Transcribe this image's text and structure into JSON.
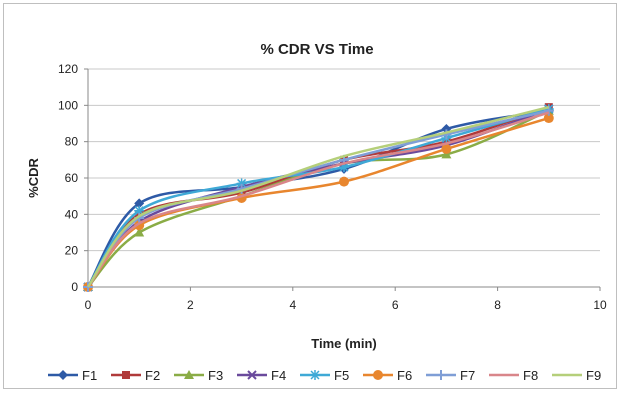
{
  "chart_data": {
    "type": "line",
    "title": "% CDR VS Time",
    "xlabel": "Time (min)",
    "ylabel": "%CDR",
    "xlim": [
      0,
      10
    ],
    "ylim": [
      0,
      120
    ],
    "x_ticks": [
      0,
      2,
      4,
      6,
      8,
      10
    ],
    "y_ticks": [
      0,
      20,
      40,
      60,
      80,
      100,
      120
    ],
    "grid": "horizontal",
    "legend_position": "bottom",
    "x": [
      0,
      1,
      3,
      5,
      7,
      9
    ],
    "series": [
      {
        "name": "F1",
        "values": [
          0,
          46,
          55,
          65,
          87,
          97
        ],
        "color": "#2e5aa6",
        "marker": "diamond"
      },
      {
        "name": "F2",
        "values": [
          0,
          40,
          52,
          70,
          80,
          99
        ],
        "color": "#b03a3a",
        "marker": "square"
      },
      {
        "name": "F3",
        "values": [
          0,
          30,
          50,
          68,
          73,
          97
        ],
        "color": "#8aac46",
        "marker": "triangle"
      },
      {
        "name": "F4",
        "values": [
          0,
          36,
          55,
          68,
          78,
          98
        ],
        "color": "#6a4a9c",
        "marker": "x"
      },
      {
        "name": "F5",
        "values": [
          0,
          42,
          57,
          66,
          82,
          98
        ],
        "color": "#3fa9d6",
        "marker": "star"
      },
      {
        "name": "F6",
        "values": [
          0,
          34,
          49,
          58,
          76,
          93
        ],
        "color": "#e8862e",
        "marker": "circle"
      },
      {
        "name": "F7",
        "values": [
          0,
          38,
          54,
          70,
          84,
          97
        ],
        "color": "#7f9ed6",
        "marker": "plus"
      },
      {
        "name": "F8",
        "values": [
          0,
          35,
          50,
          68,
          79,
          96
        ],
        "color": "#d9868a",
        "marker": "none"
      },
      {
        "name": "F9",
        "values": [
          0,
          39,
          53,
          72,
          85,
          99
        ],
        "color": "#b5cf7a",
        "marker": "none"
      }
    ]
  }
}
